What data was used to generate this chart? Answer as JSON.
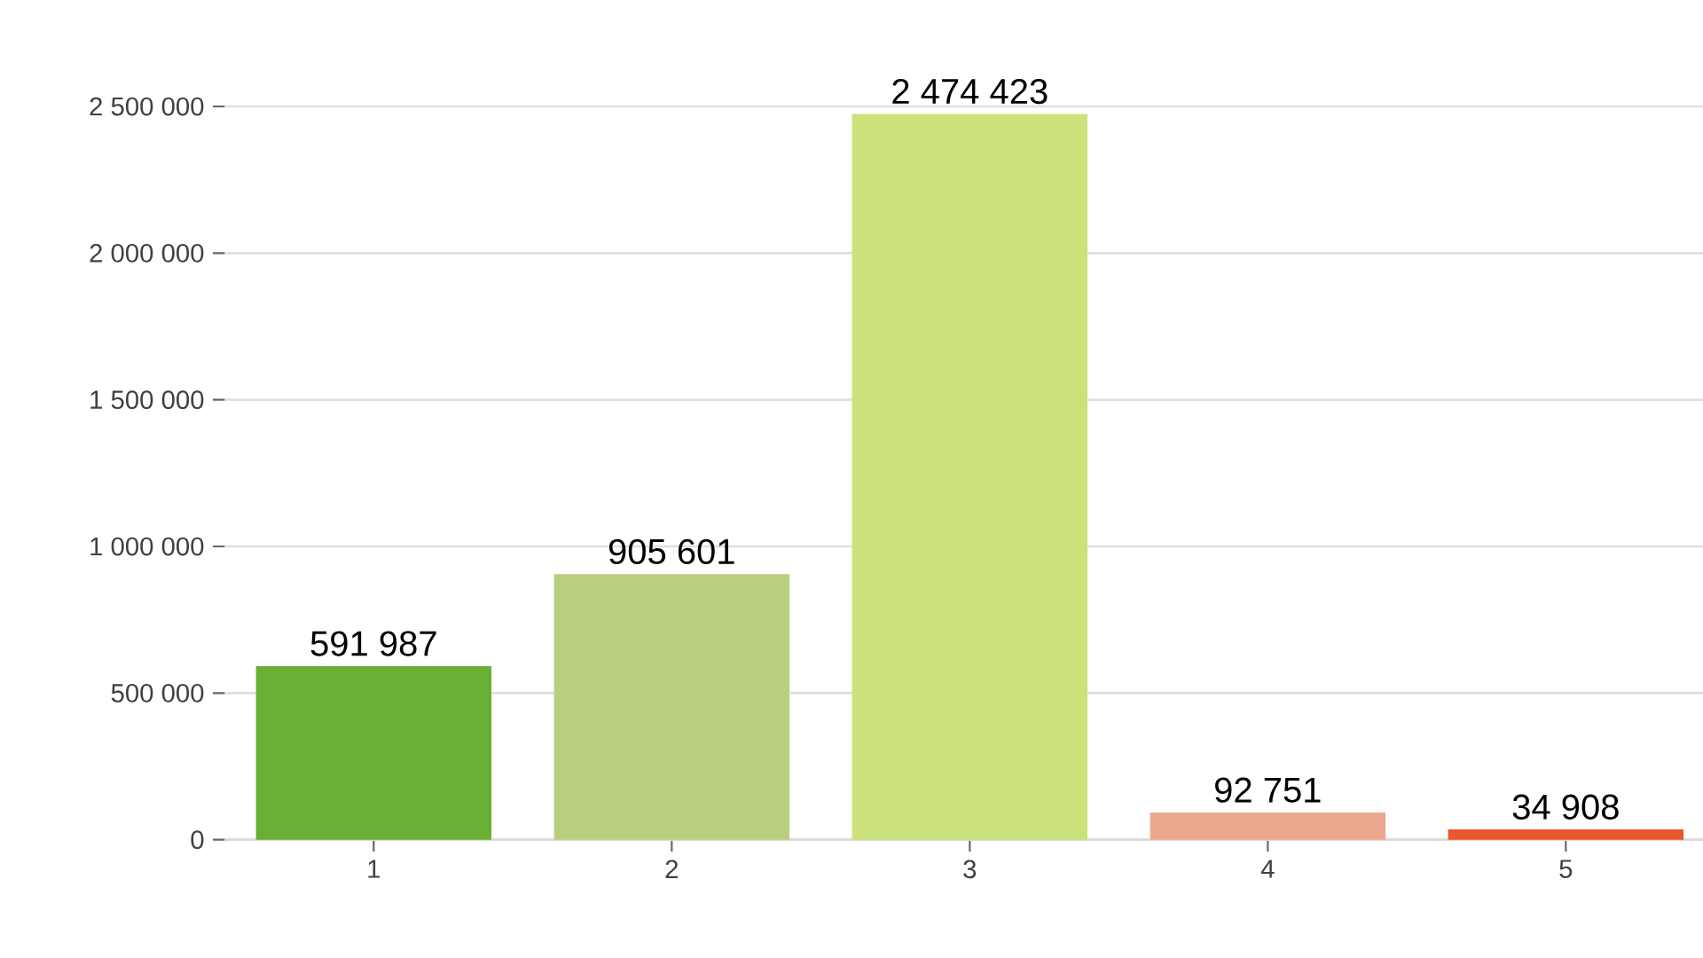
{
  "chart_data": {
    "type": "bar",
    "categories": [
      "1",
      "2",
      "3",
      "4",
      "5"
    ],
    "values": [
      591987,
      905601,
      2474423,
      92751,
      34908
    ],
    "colors": [
      "#6aaf35",
      "#b9cf7e",
      "#cbe27a",
      "#eba88f",
      "#e8572d"
    ],
    "value_labels": [
      "591 987",
      "905 601",
      "2 474 423",
      "92 751",
      "34 908"
    ],
    "ylim": [
      0,
      2500000
    ],
    "yticks": [
      0,
      {
        "value": 500000,
        "label": "500 000"
      },
      {
        "value": 1000000,
        "label": "1 000 000"
      },
      {
        "value": 1500000,
        "label": "1 500 000"
      },
      {
        "value": 2000000,
        "label": "2 000 000"
      },
      {
        "value": 2500000,
        "label": "2 500 000"
      }
    ],
    "grid": "y"
  }
}
